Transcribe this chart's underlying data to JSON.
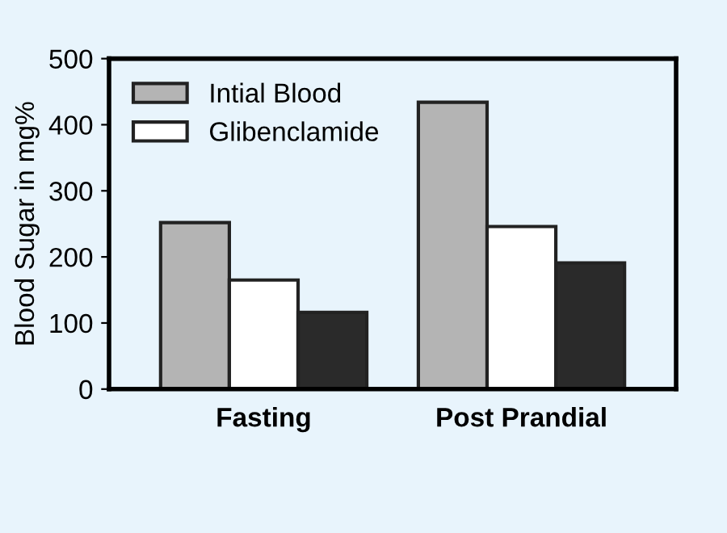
{
  "chart_data": {
    "type": "bar",
    "ylabel": "Blood Sugar in mg%",
    "categories": [
      "Fasting",
      "Post Prandial"
    ],
    "series": [
      {
        "name": "Intial Blood",
        "color": "#b4b4b4",
        "values": [
          252,
          434
        ]
      },
      {
        "name": "Glibenclamide",
        "color": "#ffffff",
        "values": [
          165,
          246
        ]
      },
      {
        "color": "#2a2a2a",
        "values": [
          116,
          191
        ]
      }
    ],
    "ylim": [
      0,
      500
    ],
    "yticks": [
      0,
      100,
      200,
      300,
      400,
      500
    ],
    "grid": false,
    "legend": "top left"
  }
}
